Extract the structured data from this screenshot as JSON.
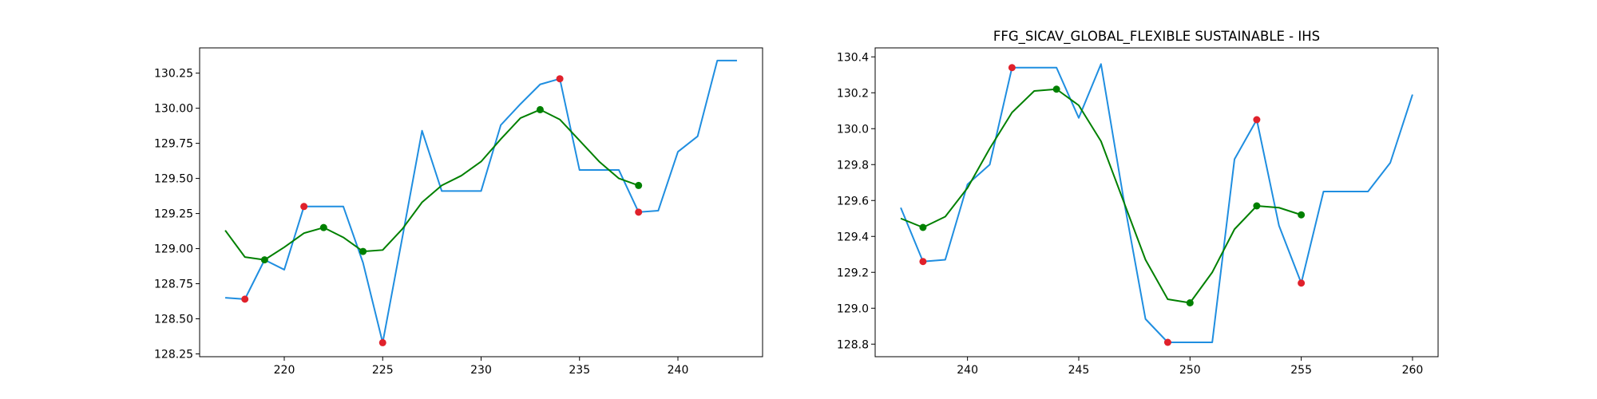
{
  "figure": {
    "background": "#ffffff"
  },
  "colors": {
    "raw": "#1f8ee0",
    "smooth": "#008000",
    "peak": "#e0212b",
    "trough": "#008000"
  },
  "chart_data": [
    {
      "type": "line",
      "title": "",
      "xlabel": "",
      "ylabel": "",
      "xlim": [
        215.7,
        244.3
      ],
      "ylim": [
        128.23,
        130.43
      ],
      "xticks": [
        220,
        225,
        230,
        235,
        240
      ],
      "xtick_labels": [
        "220",
        "225",
        "230",
        "235",
        "240"
      ],
      "yticks": [
        128.25,
        128.5,
        128.75,
        129.0,
        129.25,
        129.5,
        129.75,
        130.0,
        130.25
      ],
      "ytick_labels": [
        "128.25",
        "128.50",
        "128.75",
        "129.00",
        "129.25",
        "129.50",
        "129.75",
        "130.00",
        "130.25"
      ],
      "grid": false,
      "series": [
        {
          "role": "raw",
          "x": [
            217,
            218,
            219,
            220,
            221,
            222,
            223,
            224,
            225,
            226,
            227,
            228,
            229,
            230,
            231,
            232,
            233,
            234,
            235,
            236,
            237,
            238,
            239,
            240,
            241,
            242,
            243
          ],
          "y": [
            128.65,
            128.64,
            128.92,
            128.85,
            129.3,
            129.3,
            129.3,
            128.9,
            128.33,
            129.08,
            129.84,
            129.41,
            129.41,
            129.41,
            129.88,
            130.03,
            130.17,
            130.21,
            129.56,
            129.56,
            129.56,
            129.26,
            129.27,
            129.69,
            129.8,
            130.34,
            130.34
          ]
        },
        {
          "role": "smooth",
          "x": [
            217,
            218,
            219,
            220,
            221,
            222,
            223,
            224,
            225,
            226,
            227,
            228,
            229,
            230,
            231,
            232,
            233,
            234,
            235,
            236,
            237,
            238
          ],
          "y": [
            129.13,
            128.94,
            128.92,
            129.01,
            129.11,
            129.15,
            129.08,
            128.98,
            128.99,
            129.14,
            129.33,
            129.45,
            129.52,
            129.62,
            129.78,
            129.93,
            129.99,
            129.92,
            129.77,
            129.62,
            129.5,
            129.45
          ]
        }
      ],
      "peaks": {
        "x": [
          218,
          221,
          225,
          234,
          238
        ],
        "y": [
          128.64,
          129.3,
          128.33,
          130.21,
          129.26
        ]
      },
      "troughs": {
        "x": [
          219,
          222,
          224,
          233,
          238
        ],
        "y": [
          128.92,
          129.15,
          128.98,
          129.99,
          129.45
        ]
      }
    },
    {
      "type": "line",
      "title": "FFG_SICAV_GLOBAL_FLEXIBLE SUSTAINABLE - IHS",
      "xlabel": "",
      "ylabel": "",
      "xlim": [
        235.85,
        261.15
      ],
      "ylim": [
        128.73,
        130.45
      ],
      "xticks": [
        240,
        245,
        250,
        255,
        260
      ],
      "xtick_labels": [
        "240",
        "245",
        "250",
        "255",
        "260"
      ],
      "yticks": [
        128.8,
        129.0,
        129.2,
        129.4,
        129.6,
        129.8,
        130.0,
        130.2,
        130.4
      ],
      "ytick_labels": [
        "128.8",
        "129.0",
        "129.2",
        "129.4",
        "129.6",
        "129.8",
        "130.0",
        "130.2",
        "130.4"
      ],
      "grid": false,
      "series": [
        {
          "role": "raw",
          "x": [
            237,
            238,
            239,
            240,
            241,
            242,
            243,
            244,
            245,
            246,
            247,
            248,
            249,
            250,
            251,
            252,
            253,
            254,
            255,
            256,
            257,
            258,
            259,
            260
          ],
          "y": [
            129.56,
            129.26,
            129.27,
            129.69,
            129.8,
            130.34,
            130.34,
            130.34,
            130.06,
            130.36,
            129.62,
            128.94,
            128.81,
            128.81,
            128.81,
            129.83,
            130.05,
            129.46,
            129.14,
            129.65,
            129.65,
            129.65,
            129.81,
            130.19
          ]
        },
        {
          "role": "smooth",
          "x": [
            237,
            238,
            239,
            240,
            241,
            242,
            243,
            244,
            245,
            246,
            247,
            248,
            249,
            250,
            251,
            252,
            253,
            254,
            255
          ],
          "y": [
            129.5,
            129.45,
            129.51,
            129.67,
            129.89,
            130.09,
            130.21,
            130.22,
            130.13,
            129.93,
            129.6,
            129.27,
            129.05,
            129.03,
            129.2,
            129.44,
            129.57,
            129.56,
            129.52
          ]
        }
      ],
      "peaks": {
        "x": [
          238,
          242,
          249,
          253,
          255
        ],
        "y": [
          129.26,
          130.34,
          128.81,
          130.05,
          129.14
        ]
      },
      "troughs": {
        "x": [
          238,
          244,
          250,
          253,
          255
        ],
        "y": [
          129.45,
          130.22,
          129.03,
          129.57,
          129.52
        ]
      }
    }
  ]
}
